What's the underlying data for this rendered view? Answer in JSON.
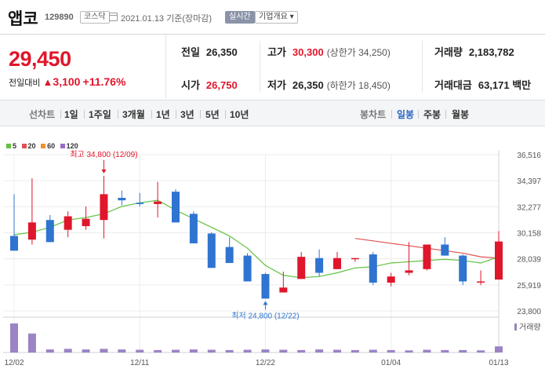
{
  "header": {
    "stock_name": "앱코",
    "stock_code": "129890",
    "market_badge": "코스닥",
    "date_text": "2021.01.13 기준(장마감)",
    "realtime_badge": "실시간",
    "corp_info_button": "기업개요 ▾"
  },
  "quote": {
    "price": "29,450",
    "change_label": "전일대비",
    "change_arrow": "▲",
    "change_amount": "3,100",
    "change_pct": "+11.76%",
    "prev_close_label": "전일",
    "prev_close": "26,350",
    "open_label": "시가",
    "open": "26,750",
    "high_label": "고가",
    "high": "30,300",
    "upper_limit_text": "(상한가 34,250)",
    "low_label": "저가",
    "low": "26,350",
    "lower_limit_text": "(하한가 18,450)",
    "volume_label": "거래량",
    "volume": "2,183,782",
    "amount_label": "거래대금",
    "amount": "63,171 백만"
  },
  "periods": {
    "line_chart": "선차트",
    "items": [
      "1일",
      "1주일",
      "3개월",
      "1년",
      "3년",
      "5년",
      "10년"
    ],
    "candle_chart": "봉차트",
    "candle_items": [
      "일봉",
      "주봉",
      "월봉"
    ],
    "active_candle": "일봉"
  },
  "colors": {
    "up": "#e0162b",
    "down": "#2f74d0",
    "ma5": "#62c140",
    "ma20": "#e05050",
    "ma60": "#f09030",
    "ma120": "#9a6cc8",
    "volume": "#9a84c4"
  },
  "chart_data": {
    "type": "candlestick",
    "legend": [
      {
        "name": "5",
        "color": "#62c140"
      },
      {
        "name": "20",
        "color": "#e05050"
      },
      {
        "name": "60",
        "color": "#f09030"
      },
      {
        "name": "120",
        "color": "#9a6cc8"
      }
    ],
    "y_ticks": [
      "36,516",
      "34,397",
      "32,277",
      "30,158",
      "28,039",
      "25,919",
      "23,800"
    ],
    "ylim": [
      23800,
      36516
    ],
    "x_ticks": [
      "12/02",
      "12/11",
      "12/22",
      "01/04",
      "01/13"
    ],
    "candles": [
      {
        "o": 29900,
        "h": 33300,
        "l": 28700,
        "c": 28700
      },
      {
        "o": 29600,
        "h": 34600,
        "l": 29200,
        "c": 31000
      },
      {
        "o": 31200,
        "h": 31600,
        "l": 29400,
        "c": 29400
      },
      {
        "o": 30400,
        "h": 31900,
        "l": 29800,
        "c": 31500
      },
      {
        "o": 30700,
        "h": 32300,
        "l": 30400,
        "c": 31300
      },
      {
        "o": 31200,
        "h": 34800,
        "l": 29700,
        "c": 33300
      },
      {
        "o": 33000,
        "h": 33600,
        "l": 32400,
        "c": 32800
      },
      {
        "o": 32600,
        "h": 33400,
        "l": 32300,
        "c": 32500
      },
      {
        "o": 32500,
        "h": 34300,
        "l": 31400,
        "c": 32700
      },
      {
        "o": 33500,
        "h": 33700,
        "l": 31000,
        "c": 31000
      },
      {
        "o": 31700,
        "h": 31900,
        "l": 29300,
        "c": 29300
      },
      {
        "o": 30100,
        "h": 30200,
        "l": 27300,
        "c": 27300
      },
      {
        "o": 29000,
        "h": 29800,
        "l": 27700,
        "c": 27700
      },
      {
        "o": 28300,
        "h": 28500,
        "l": 26200,
        "c": 26200
      },
      {
        "o": 26800,
        "h": 26900,
        "l": 24800,
        "c": 24800
      },
      {
        "o": 25300,
        "h": 27000,
        "l": 25300,
        "c": 25700
      },
      {
        "o": 26400,
        "h": 28600,
        "l": 26400,
        "c": 28200
      },
      {
        "o": 28100,
        "h": 28800,
        "l": 26600,
        "c": 26900
      },
      {
        "o": 27200,
        "h": 28600,
        "l": 27200,
        "c": 28100
      },
      {
        "o": 28100,
        "h": 28100,
        "l": 27800,
        "c": 28100
      },
      {
        "o": 28400,
        "h": 28600,
        "l": 25900,
        "c": 26100
      },
      {
        "o": 26100,
        "h": 26900,
        "l": 25800,
        "c": 26600
      },
      {
        "o": 26900,
        "h": 29400,
        "l": 26700,
        "c": 27100
      },
      {
        "o": 27200,
        "h": 29200,
        "l": 27100,
        "c": 29200
      },
      {
        "o": 29200,
        "h": 29800,
        "l": 28300,
        "c": 28300
      },
      {
        "o": 28300,
        "h": 28400,
        "l": 25900,
        "c": 26200
      },
      {
        "o": 26200,
        "h": 27100,
        "l": 25900,
        "c": 26200
      },
      {
        "o": 26350,
        "h": 30300,
        "l": 26350,
        "c": 29450
      }
    ],
    "ma5": [
      30000,
      30200,
      30600,
      31200,
      31400,
      31700,
      32300,
      32600,
      32800,
      32000,
      31300,
      30600,
      29900,
      28900,
      27500,
      26700,
      26500,
      26600,
      26900,
      27300,
      27400,
      27700,
      27800,
      27900,
      28000,
      27900,
      27700,
      28200
    ],
    "ma20": [
      null,
      null,
      null,
      null,
      null,
      null,
      null,
      null,
      null,
      null,
      null,
      null,
      null,
      null,
      null,
      null,
      null,
      null,
      null,
      29700,
      29500,
      29300,
      29100,
      28900,
      28700,
      28500,
      28200,
      28100
    ],
    "volume": [
      0.95,
      0.62,
      0.1,
      0.12,
      0.1,
      0.12,
      0.1,
      0.09,
      0.08,
      0.09,
      0.1,
      0.09,
      0.08,
      0.09,
      0.1,
      0.09,
      0.08,
      0.1,
      0.09,
      0.08,
      0.09,
      0.08,
      0.07,
      0.09,
      0.08,
      0.08,
      0.07,
      0.2
    ],
    "annotations": [
      {
        "text": "최고 34,800 (12/09)",
        "price": 34800,
        "index": 5,
        "color": "#e0162b"
      },
      {
        "text": "최저 24,800 (12/22)",
        "price": 24800,
        "index": 14,
        "color": "#2f74d0"
      }
    ],
    "volume_label": "거래량"
  }
}
